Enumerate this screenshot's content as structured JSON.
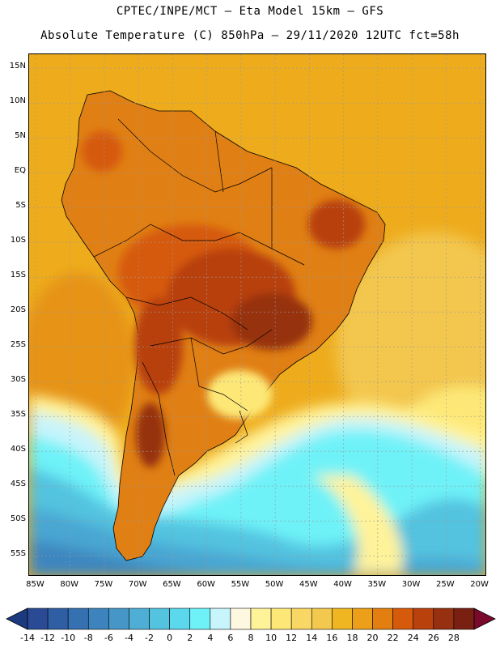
{
  "title_line1": "CPTEC/INPE/MCT –  Eta Model 15km – GFS",
  "title_line2": "Absolute Temperature (C) 850hPa – 29/11/2020 12UTC fct=58h",
  "map": {
    "lon_range": [
      -86,
      -19
    ],
    "lat_range": [
      -58,
      17
    ],
    "grid_lines": "dotted",
    "lat_labels": [
      "15N",
      "10N",
      "5N",
      "EQ",
      "5S",
      "10S",
      "15S",
      "20S",
      "25S",
      "30S",
      "35S",
      "40S",
      "45S",
      "50S",
      "55S"
    ],
    "lat_values": [
      15,
      10,
      5,
      0,
      -5,
      -10,
      -15,
      -20,
      -25,
      -30,
      -35,
      -40,
      -45,
      -50,
      -55
    ],
    "lon_labels": [
      "85W",
      "80W",
      "75W",
      "70W",
      "65W",
      "60W",
      "55W",
      "50W",
      "45W",
      "40W",
      "35W",
      "30W",
      "25W",
      "20W"
    ],
    "lon_values": [
      -85,
      -80,
      -75,
      -70,
      -65,
      -60,
      -55,
      -50,
      -45,
      -40,
      -35,
      -30,
      -25,
      -20
    ]
  },
  "colorbar": {
    "labels": [
      "-14",
      "-12",
      "-10",
      "-8",
      "-6",
      "-4",
      "-2",
      "0",
      "2",
      "4",
      "6",
      "8",
      "10",
      "12",
      "14",
      "16",
      "18",
      "20",
      "22",
      "24",
      "26",
      "28"
    ],
    "colors": [
      "#2b4a96",
      "#2f5ea5",
      "#3570b0",
      "#3d83bd",
      "#4697c8",
      "#4eaed6",
      "#53c3e0",
      "#5cd8ec",
      "#6ef2f8",
      "#c8f4fb",
      "#fff8e0",
      "#fff39a",
      "#fde877",
      "#f8d765",
      "#f2c84f",
      "#efb621",
      "#ec9f18",
      "#e27f10",
      "#d65a0c",
      "#b8410c",
      "#963010",
      "#7a2012"
    ],
    "left_arrow_color": "#1c3a80",
    "right_arrow_color": "#7a0a2c"
  },
  "colors": {
    "ocean_warm": "#eeac1d",
    "ocean_mid": "#f3c64e",
    "land_hot": "#b14810",
    "land_warm": "#e07f14",
    "cold_band": "#6ef2f8",
    "cold_deep": "#4aa6d2",
    "cold_south": "#3c86bf"
  }
}
